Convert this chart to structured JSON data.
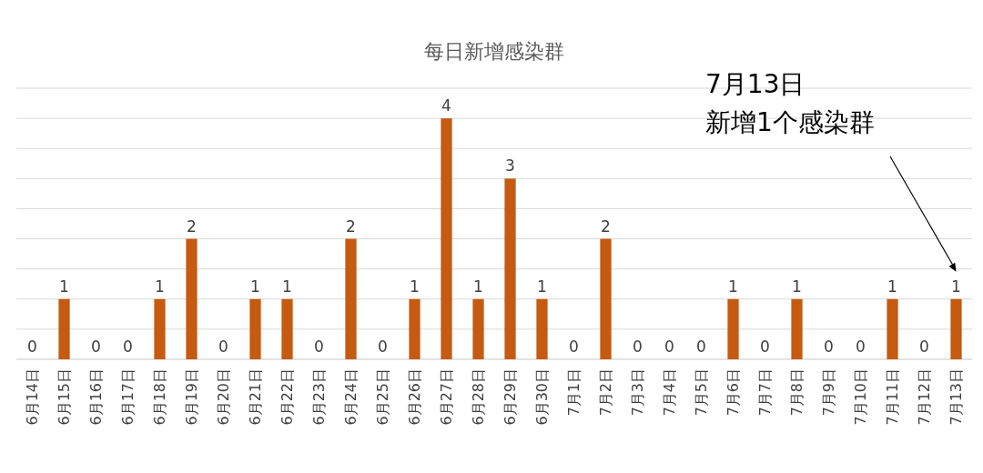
{
  "chart_data": {
    "type": "bar",
    "title": "每日新增感染群",
    "categories": [
      "6月14日",
      "6月15日",
      "6月16日",
      "6月17日",
      "6月18日",
      "6月19日",
      "6月20日",
      "6月21日",
      "6月22日",
      "6月23日",
      "6月24日",
      "6月25日",
      "6月26日",
      "6月27日",
      "6月28日",
      "6月29日",
      "6月30日",
      "7月1日",
      "7月2日",
      "7月3日",
      "7月4日",
      "7月5日",
      "7月6日",
      "7月7日",
      "7月8日",
      "7月9日",
      "7月10日",
      "7月11日",
      "7月12日",
      "7月13日"
    ],
    "values": [
      0,
      1,
      0,
      0,
      1,
      2,
      0,
      1,
      1,
      0,
      2,
      0,
      1,
      4,
      1,
      3,
      1,
      0,
      2,
      0,
      0,
      0,
      1,
      0,
      1,
      0,
      0,
      1,
      0,
      1
    ],
    "color": "#c55a11",
    "ylim": [
      0,
      4.5
    ],
    "yticks": [
      {
        "value": 0,
        "label": null
      },
      {
        "value": 0.5,
        "label": null
      },
      {
        "value": 1,
        "label": null
      },
      {
        "value": 1.5,
        "label": null
      },
      {
        "value": 2,
        "label": null
      },
      {
        "value": 2.5,
        "label": null
      },
      {
        "value": 3,
        "label": null
      },
      {
        "value": 3.5,
        "label": null
      },
      {
        "value": 4,
        "label": null
      },
      {
        "value": 4.5,
        "label": null
      }
    ],
    "grid": "y",
    "data_labels": true,
    "annotations": [
      "7月13日",
      "新增1个感染群"
    ]
  }
}
